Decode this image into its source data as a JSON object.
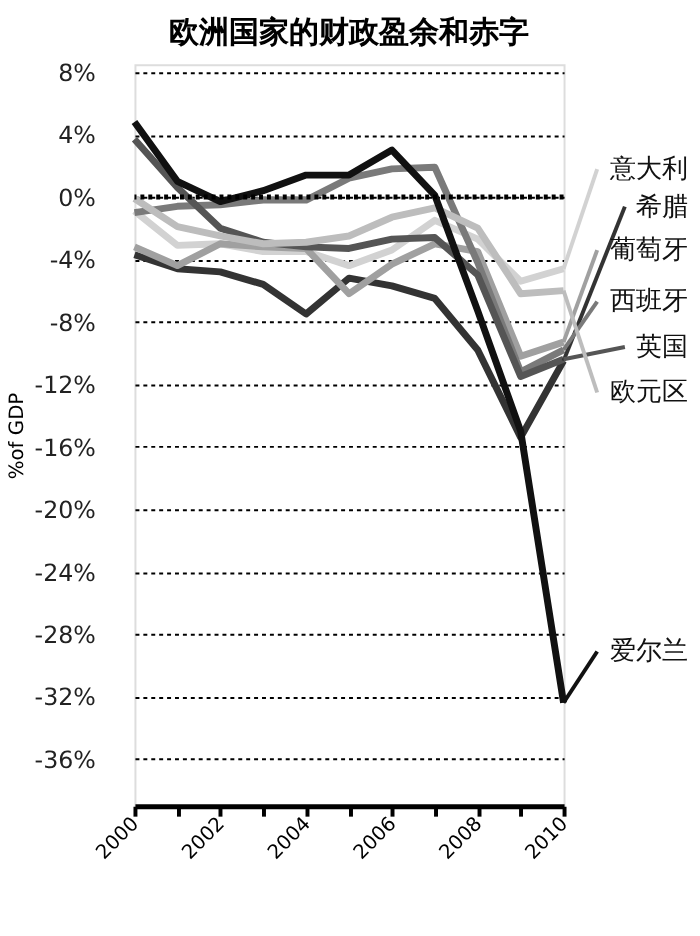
{
  "chart_data": {
    "type": "line",
    "title": "欧洲国家的财政盈余和赤字",
    "ylabel": "%of GDP",
    "x": [
      2000,
      2001,
      2002,
      2003,
      2004,
      2005,
      2006,
      2007,
      2008,
      2009,
      2010
    ],
    "series": [
      {
        "name": "意大利",
        "color": "#d2d2d2",
        "values": [
          -0.9,
          -3.1,
          -3.0,
          -3.5,
          -3.5,
          -4.4,
          -3.4,
          -1.5,
          -2.7,
          -5.4,
          -4.6
        ]
      },
      {
        "name": "希腊",
        "color": "#333333",
        "values": [
          -3.7,
          -4.6,
          -4.8,
          -5.6,
          -7.5,
          -5.2,
          -5.7,
          -6.5,
          -9.8,
          -15.4,
          -10.5
        ]
      },
      {
        "name": "葡萄牙",
        "color": "#a0a0a0",
        "values": [
          -3.2,
          -4.4,
          -3.0,
          -3.2,
          -3.3,
          -6.2,
          -4.3,
          -3.0,
          -3.5,
          -10.2,
          -9.3
        ]
      },
      {
        "name": "西班牙",
        "color": "#7a7a7a",
        "values": [
          -1.0,
          -0.6,
          -0.5,
          -0.2,
          -0.2,
          1.2,
          1.8,
          1.9,
          -4.2,
          -11.2,
          -9.8
        ]
      },
      {
        "name": "英国",
        "color": "#555555",
        "values": [
          3.7,
          0.6,
          -2.0,
          -2.9,
          -3.2,
          -3.3,
          -2.7,
          -2.6,
          -5.0,
          -11.5,
          -10.4
        ]
      },
      {
        "name": "欧元区",
        "color": "#bdbdbd",
        "values": [
          -0.1,
          -1.9,
          -2.5,
          -3.0,
          -2.9,
          -2.5,
          -1.3,
          -0.7,
          -2.0,
          -6.2,
          -6.0
        ]
      },
      {
        "name": "爱尔兰",
        "color": "#111111",
        "values": [
          4.8,
          1.0,
          -0.3,
          0.4,
          1.4,
          1.4,
          3.0,
          0.1,
          -7.3,
          -15.0,
          -32.4
        ]
      }
    ],
    "xlim": [
      2000,
      2010
    ],
    "xticks": [
      2000,
      {
        "value": 2001,
        "label": null
      },
      2002,
      {
        "value": 2003,
        "label": null
      },
      2004,
      {
        "value": 2005,
        "label": null
      },
      2006,
      {
        "value": 2007,
        "label": null
      },
      2008,
      {
        "value": 2009,
        "label": null
      },
      2010
    ],
    "ylim": [
      -39,
      8.5
    ],
    "yticks": [
      {
        "value": 8,
        "label": "8%"
      },
      {
        "value": 4,
        "label": "4%"
      },
      {
        "value": 0,
        "label": "0%"
      },
      {
        "value": -4,
        "label": "-4%"
      },
      {
        "value": -8,
        "label": "-8%"
      },
      {
        "value": -12,
        "label": "-12%"
      },
      {
        "value": -16,
        "label": "-16%"
      },
      {
        "value": -20,
        "label": "-20%"
      },
      {
        "value": -24,
        "label": "-24%"
      },
      {
        "value": -28,
        "label": "-28%"
      },
      {
        "value": -32,
        "label": "-32%"
      },
      {
        "value": -36,
        "label": "-36%"
      }
    ],
    "ref_lines": [
      {
        "axis": "y",
        "value": 0,
        "line_style": "dotted",
        "color": "#000000"
      }
    ],
    "grid": "y",
    "legend": "right",
    "marker": "none",
    "line_style": "solid"
  }
}
